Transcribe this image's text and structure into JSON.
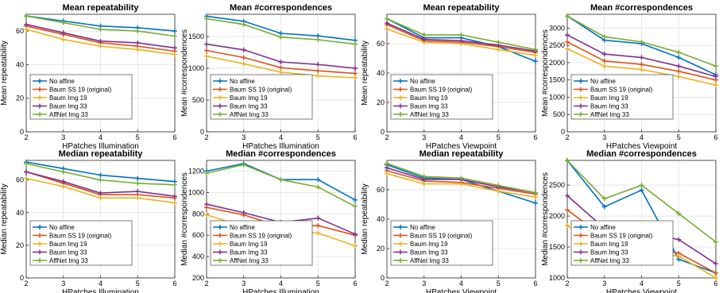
{
  "colors": {
    "no_affine": "#0072bd",
    "baum_ss19": "#d95319",
    "baum_img19": "#edb120",
    "baum_img33": "#7e2f8e",
    "affnet_img33": "#77ac30"
  },
  "chart_data": [
    {
      "type": "line",
      "title": "Mean repeatability",
      "xlabel": "HPatches Illumination",
      "ylabel": "Mean repeatability",
      "x": [
        2,
        3,
        4,
        5,
        6
      ],
      "xlim": [
        2,
        6
      ],
      "ylim": [
        0,
        70
      ],
      "yticks": [
        0,
        20,
        40,
        60
      ],
      "grid": true,
      "legend": "bottom-left",
      "series": [
        {
          "name": "No affine",
          "color": "#0072bd",
          "values": [
            69,
            66,
            63,
            62,
            60
          ]
        },
        {
          "name": "Baum SS 19 (original)",
          "color": "#d95319",
          "values": [
            63,
            58,
            53,
            51,
            48
          ]
        },
        {
          "name": "Baum Img 19",
          "color": "#edb120",
          "values": [
            61,
            55,
            51,
            49,
            46
          ]
        },
        {
          "name": "Baum Img 33",
          "color": "#7e2f8e",
          "values": [
            64,
            59,
            54,
            53,
            50
          ]
        },
        {
          "name": "AffNet Img 33",
          "color": "#77ac30",
          "values": [
            69,
            65,
            61,
            60,
            57
          ]
        }
      ]
    },
    {
      "type": "line",
      "title": "Mean #correspondences",
      "xlabel": "HPatches Illumination",
      "ylabel": "Mean #correspondences",
      "x": [
        2,
        3,
        4,
        5,
        6
      ],
      "xlim": [
        2,
        6
      ],
      "ylim": [
        0,
        1850
      ],
      "yticks": [
        0,
        500,
        1000,
        1500
      ],
      "grid": true,
      "legend": "bottom-left",
      "series": [
        {
          "name": "No affine",
          "color": "#0072bd",
          "values": [
            1820,
            1740,
            1550,
            1510,
            1440
          ]
        },
        {
          "name": "Baum SS 19 (original)",
          "color": "#d95319",
          "values": [
            1280,
            1170,
            1010,
            960,
            920
          ]
        },
        {
          "name": "Baum Img 19",
          "color": "#edb120",
          "values": [
            1190,
            1070,
            940,
            880,
            850
          ]
        },
        {
          "name": "Baum Img 33",
          "color": "#7e2f8e",
          "values": [
            1380,
            1290,
            1100,
            1060,
            1000
          ]
        },
        {
          "name": "AffNet Img 33",
          "color": "#77ac30",
          "values": [
            1780,
            1690,
            1490,
            1450,
            1380
          ]
        }
      ]
    },
    {
      "type": "line",
      "title": "Mean repeatability",
      "xlabel": "HPatches Viewpoint",
      "ylabel": "Mean repeatability",
      "x": [
        2,
        3,
        4,
        5,
        6
      ],
      "xlim": [
        2,
        6
      ],
      "ylim": [
        0,
        80
      ],
      "yticks": [
        0,
        20,
        40,
        60
      ],
      "grid": true,
      "legend": "bottom-left",
      "series": [
        {
          "name": "No affine",
          "color": "#0072bd",
          "values": [
            77,
            64,
            64,
            58,
            48
          ]
        },
        {
          "name": "Baum SS 19 (original)",
          "color": "#d95319",
          "values": [
            73,
            62,
            61,
            58,
            54
          ]
        },
        {
          "name": "Baum Img 19",
          "color": "#edb120",
          "values": [
            70,
            61,
            60,
            56,
            52
          ]
        },
        {
          "name": "Baum Img 33",
          "color": "#7e2f8e",
          "values": [
            74,
            63,
            62,
            59,
            55
          ]
        },
        {
          "name": "AffNet Img 33",
          "color": "#77ac30",
          "values": [
            77,
            66,
            66,
            61,
            56
          ]
        }
      ]
    },
    {
      "type": "line",
      "title": "Mean #correspondences",
      "xlabel": "HPatches Viewpoint",
      "ylabel": "Mean #correspondences",
      "x": [
        2,
        3,
        4,
        5,
        6
      ],
      "xlim": [
        2,
        6
      ],
      "ylim": [
        0,
        3400
      ],
      "yticks": [
        0,
        500,
        1000,
        1500,
        2000,
        2500,
        3000
      ],
      "grid": true,
      "legend": "bottom-left",
      "series": [
        {
          "name": "No affine",
          "color": "#0072bd",
          "values": [
            3350,
            2650,
            2550,
            2150,
            1650
          ]
        },
        {
          "name": "Baum SS 19 (original)",
          "color": "#d95319",
          "values": [
            2600,
            2050,
            1950,
            1750,
            1500
          ]
        },
        {
          "name": "Baum Img 19",
          "color": "#edb120",
          "values": [
            2400,
            1900,
            1800,
            1600,
            1350
          ]
        },
        {
          "name": "Baum Img 33",
          "color": "#7e2f8e",
          "values": [
            2800,
            2250,
            2150,
            1900,
            1600
          ]
        },
        {
          "name": "AffNet Img 33",
          "color": "#77ac30",
          "values": [
            3350,
            2750,
            2600,
            2300,
            1900
          ]
        }
      ]
    },
    {
      "type": "line",
      "title": "Median repeatability",
      "xlabel": "HPatches Illumination",
      "ylabel": "Median repeatability",
      "x": [
        2,
        3,
        4,
        5,
        6
      ],
      "xlim": [
        2,
        6
      ],
      "ylim": [
        0,
        72
      ],
      "yticks": [
        0,
        20,
        40,
        60
      ],
      "grid": true,
      "legend": "bottom-left",
      "series": [
        {
          "name": "No affine",
          "color": "#0072bd",
          "values": [
            71,
            67,
            63,
            61,
            59
          ]
        },
        {
          "name": "Baum SS 19 (original)",
          "color": "#d95319",
          "values": [
            65,
            58,
            51,
            51,
            49
          ]
        },
        {
          "name": "Baum Img 19",
          "color": "#edb120",
          "values": [
            61,
            56,
            49,
            49,
            46
          ]
        },
        {
          "name": "Baum Img 33",
          "color": "#7e2f8e",
          "values": [
            65,
            59,
            52,
            53,
            50
          ]
        },
        {
          "name": "AffNet Img 33",
          "color": "#77ac30",
          "values": [
            70,
            65,
            60,
            58,
            57
          ]
        }
      ]
    },
    {
      "type": "line",
      "title": "Median #correspondences",
      "xlabel": "HPatches Illumination",
      "ylabel": "Median #correspondences",
      "x": [
        2,
        3,
        4,
        5,
        6
      ],
      "xlim": [
        2,
        6
      ],
      "ylim": [
        200,
        1300
      ],
      "yticks": [
        200,
        400,
        600,
        800,
        1000,
        1200
      ],
      "grid": true,
      "legend": "bottom-left",
      "series": [
        {
          "name": "No affine",
          "color": "#0072bd",
          "values": [
            1200,
            1270,
            1120,
            1120,
            930
          ]
        },
        {
          "name": "Baum SS 19 (original)",
          "color": "#d95319",
          "values": [
            860,
            790,
            680,
            690,
            600
          ]
        },
        {
          "name": "Baum Img 19",
          "color": "#edb120",
          "values": [
            790,
            680,
            640,
            620,
            500
          ]
        },
        {
          "name": "Baum Img 33",
          "color": "#7e2f8e",
          "values": [
            890,
            810,
            720,
            760,
            610
          ]
        },
        {
          "name": "AffNet Img 33",
          "color": "#77ac30",
          "values": [
            1180,
            1260,
            1120,
            1050,
            870
          ]
        }
      ]
    },
    {
      "type": "line",
      "title": "Median repeatability",
      "xlabel": "HPatches Viewpoint",
      "ylabel": "Median repeatability",
      "x": [
        2,
        3,
        4,
        5,
        6
      ],
      "xlim": [
        2,
        6
      ],
      "ylim": [
        0,
        80
      ],
      "yticks": [
        0,
        20,
        40,
        60
      ],
      "grid": true,
      "legend": "bottom-left",
      "series": [
        {
          "name": "No affine",
          "color": "#0072bd",
          "values": [
            77,
            68,
            67,
            59,
            51
          ]
        },
        {
          "name": "Baum SS 19 (original)",
          "color": "#d95319",
          "values": [
            73,
            66,
            65,
            61,
            57
          ]
        },
        {
          "name": "Baum Img 19",
          "color": "#edb120",
          "values": [
            71,
            64,
            64,
            59,
            55
          ]
        },
        {
          "name": "Baum Img 33",
          "color": "#7e2f8e",
          "values": [
            75,
            67,
            67,
            62,
            58
          ]
        },
        {
          "name": "AffNet Img 33",
          "color": "#77ac30",
          "values": [
            78,
            69,
            68,
            63,
            58
          ]
        }
      ]
    },
    {
      "type": "line",
      "title": "Median #correspondences",
      "xlabel": "HPatches Viewpoint",
      "ylabel": "Median #correspondences",
      "x": [
        2,
        3,
        4,
        5,
        6
      ],
      "xlim": [
        2,
        6
      ],
      "ylim": [
        1000,
        2900
      ],
      "yticks": [
        1000,
        1500,
        2000,
        2500
      ],
      "grid": true,
      "legend": "bottom-left",
      "series": [
        {
          "name": "No affine",
          "color": "#0072bd",
          "values": [
            2900,
            2150,
            2420,
            1300,
            1080
          ]
        },
        {
          "name": "Baum SS 19 (original)",
          "color": "#d95319",
          "values": [
            2100,
            1650,
            1500,
            1400,
            1080
          ]
        },
        {
          "name": "Baum Img 19",
          "color": "#edb120",
          "values": [
            1850,
            1420,
            1450,
            1350,
            1000
          ]
        },
        {
          "name": "Baum Img 33",
          "color": "#7e2f8e",
          "values": [
            2330,
            1800,
            1750,
            1620,
            1230
          ]
        },
        {
          "name": "AffNet Img 33",
          "color": "#77ac30",
          "values": [
            2900,
            2280,
            2500,
            2040,
            1580
          ]
        }
      ]
    }
  ]
}
